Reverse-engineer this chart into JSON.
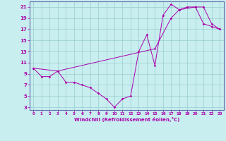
{
  "xlabel": "Windchill (Refroidissement éolien,°C)",
  "bg_color": "#c8eef0",
  "line_color": "#aa00aa",
  "grid_color": "#99cccc",
  "axis_color": "#6666aa",
  "xlim": [
    -0.5,
    23.5
  ],
  "ylim": [
    2.5,
    22
  ],
  "xticks": [
    0,
    1,
    2,
    3,
    4,
    5,
    6,
    7,
    8,
    9,
    10,
    11,
    12,
    13,
    14,
    15,
    16,
    17,
    18,
    19,
    20,
    21,
    22,
    23
  ],
  "yticks": [
    3,
    5,
    7,
    9,
    11,
    13,
    15,
    17,
    19,
    21
  ],
  "line1_x": [
    0,
    1,
    2,
    3,
    4,
    5,
    6,
    7,
    8,
    9,
    10,
    11,
    12,
    13,
    14,
    15,
    16,
    17,
    18,
    19,
    20,
    21,
    22,
    23
  ],
  "line1_y": [
    10,
    8.5,
    8.5,
    9.5,
    7.5,
    7.5,
    7,
    6.5,
    5.5,
    4.5,
    3,
    4.5,
    5,
    13,
    16,
    10.5,
    19.5,
    21.5,
    20.5,
    21,
    21,
    18,
    17.5,
    17
  ],
  "line2_x": [
    0,
    3,
    15,
    17,
    18,
    20,
    21,
    22,
    23
  ],
  "line2_y": [
    10,
    9.5,
    13.5,
    19,
    20.5,
    21,
    21,
    18,
    17
  ]
}
